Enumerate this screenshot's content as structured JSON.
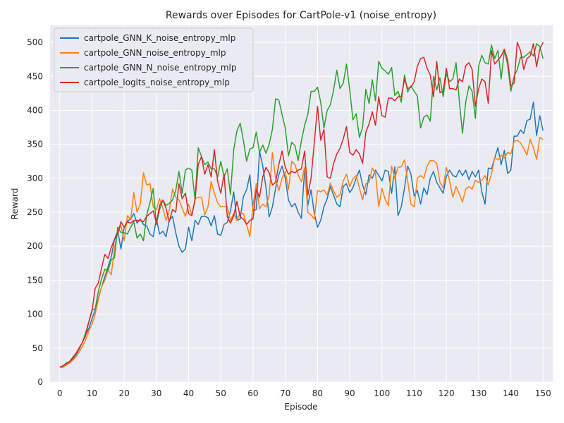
{
  "chart_data": {
    "type": "line",
    "title": "Rewards over Episodes for CartPole-v1 (noise_entropy)",
    "xlabel": "Episode",
    "ylabel": "Reward",
    "xlim": [
      -3,
      153
    ],
    "ylim": [
      0,
      525
    ],
    "xticks": [
      0,
      10,
      20,
      30,
      40,
      50,
      60,
      70,
      80,
      90,
      100,
      110,
      120,
      130,
      140,
      150
    ],
    "yticks": [
      0,
      50,
      100,
      150,
      200,
      250,
      300,
      350,
      400,
      450,
      500
    ],
    "grid": true,
    "legend_position": "top-left",
    "series": [
      {
        "name": "cartpole_GNN_K_noise_entropy_mlp",
        "color": "#1f77b4",
        "values": [
          22,
          22,
          25,
          28,
          34,
          40,
          48,
          58,
          70,
          78,
          93,
          106,
          124,
          140,
          155,
          170,
          184,
          210,
          223,
          196,
          228,
          237,
          240,
          248,
          234,
          240,
          232,
          230,
          218,
          214,
          240,
          218,
          222,
          214,
          238,
          244,
          220,
          200,
          191,
          196,
          228,
          208,
          238,
          232,
          244,
          244,
          242,
          230,
          245,
          218,
          216,
          232,
          235,
          252,
          280,
          238,
          240,
          273,
          283,
          305,
          252,
          254,
          340,
          318,
          287,
          243,
          258,
          285,
          305,
          318,
          300,
          268,
          258,
          263,
          250,
          241,
          313,
          260,
          283,
          248,
          228,
          238,
          258,
          270,
          288,
          275,
          262,
          258,
          288,
          292,
          279,
          286,
          300,
          312,
          290,
          276,
          305,
          300,
          312,
          304,
          296,
          312,
          310,
          278,
          317,
          245,
          258,
          286,
          318,
          306,
          274,
          282,
          262,
          286,
          276,
          300,
          310,
          294,
          286,
          278,
          303,
          312,
          304,
          302,
          312,
          304,
          312,
          298,
          310,
          302,
          312,
          280,
          262,
          315,
          314,
          330,
          345,
          320,
          341,
          307,
          312,
          362,
          362,
          371,
          366,
          385,
          387,
          412,
          363,
          392,
          370
        ]
      },
      {
        "name": "cartpole_GNN_noise_entropy_mlp",
        "color": "#ff7f0e",
        "values": [
          22,
          23,
          25,
          28,
          32,
          37,
          44,
          52,
          62,
          75,
          85,
          100,
          122,
          140,
          150,
          165,
          158,
          196,
          224,
          230,
          208,
          245,
          239,
          279,
          250,
          262,
          308,
          290,
          292,
          258,
          254,
          270,
          256,
          238,
          252,
          284,
          272,
          268,
          256,
          244,
          262,
          246,
          270,
          272,
          272,
          246,
          258,
          295,
          278,
          264,
          258,
          258,
          258,
          238,
          248,
          238,
          250,
          248,
          232,
          214,
          260,
          292,
          255,
          262,
          258,
          275,
          338,
          300,
          282,
          300,
          310,
          283,
          325,
          320,
          305,
          295,
          316,
          250,
          246,
          240,
          282,
          280,
          283,
          275,
          293,
          281,
          272,
          276,
          296,
          306,
          288,
          299,
          304,
          286,
          268,
          292,
          294,
          315,
          307,
          258,
          285,
          269,
          260,
          318,
          300,
          316,
          317,
          327,
          296,
          262,
          258,
          300,
          304,
          300,
          318,
          326,
          326,
          322,
          294,
          286,
          316,
          296,
          272,
          288,
          277,
          265,
          284,
          288,
          284,
          297,
          294,
          297,
          304,
          290,
          307,
          330,
          327,
          334,
          330,
          338,
          336,
          354,
          356,
          352,
          344,
          334,
          357,
          345,
          328,
          360,
          357
        ]
      },
      {
        "name": "cartpole_GNN_N_noise_entropy_mlp",
        "color": "#2ca02c",
        "values": [
          22,
          24,
          28,
          30,
          36,
          42,
          49,
          58,
          72,
          88,
          106,
          108,
          134,
          152,
          166,
          164,
          180,
          183,
          228,
          220,
          220,
          218,
          228,
          236,
          212,
          218,
          208,
          246,
          264,
          285,
          232,
          254,
          268,
          260,
          263,
          268,
          282,
          310,
          278,
          312,
          315,
          312,
          268,
          345,
          332,
          320,
          324,
          314,
          314,
          302,
          325,
          302,
          314,
          276,
          342,
          370,
          381,
          356,
          325,
          343,
          345,
          368,
          338,
          349,
          337,
          350,
          372,
          417,
          415,
          394,
          374,
          333,
          353,
          348,
          326,
          355,
          378,
          394,
          428,
          428,
          434,
          412,
          374,
          400,
          408,
          430,
          459,
          432,
          440,
          468,
          430,
          386,
          395,
          360,
          375,
          431,
          410,
          445,
          414,
          472,
          462,
          458,
          453,
          463,
          422,
          428,
          412,
          452,
          427,
          436,
          428,
          421,
          374,
          390,
          393,
          384,
          450,
          430,
          448,
          420,
          454,
          442,
          446,
          470,
          414,
          366,
          412,
          436,
          428,
          388,
          465,
          481,
          470,
          468,
          496,
          476,
          488,
          446,
          488,
          468,
          428,
          450,
          460,
          478,
          478,
          482,
          486,
          480,
          498,
          494,
          476
        ]
      },
      {
        "name": "cartpole_logits_noise_entropy_mlp",
        "color": "#d62728",
        "values": [
          22,
          24,
          27,
          30,
          36,
          42,
          50,
          58,
          68,
          88,
          104,
          138,
          146,
          168,
          188,
          182,
          198,
          210,
          218,
          236,
          228,
          236,
          234,
          238,
          238,
          238,
          236,
          244,
          248,
          252,
          234,
          260,
          268,
          256,
          236,
          254,
          250,
          292,
          270,
          278,
          248,
          245,
          268,
          320,
          332,
          306,
          320,
          302,
          342,
          295,
          278,
          306,
          243,
          234,
          245,
          266,
          243,
          240,
          232,
          238,
          240,
          284,
          272,
          302,
          316,
          308,
          290,
          294,
          320,
          340,
          316,
          306,
          310,
          308,
          312,
          314,
          340,
          275,
          300,
          352,
          406,
          356,
          372,
          302,
          300,
          322,
          336,
          344,
          358,
          376,
          338,
          334,
          342,
          336,
          322,
          368,
          380,
          398,
          378,
          420,
          392,
          390,
          418,
          418,
          414,
          420,
          420,
          446,
          432,
          434,
          442,
          465,
          476,
          478,
          462,
          452,
          420,
          472,
          426,
          428,
          462,
          432,
          432,
          430,
          446,
          442,
          466,
          470,
          460,
          406,
          432,
          446,
          442,
          410,
          488,
          468,
          474,
          480,
          490,
          474,
          436,
          440,
          500,
          488,
          460,
          476,
          480,
          498,
          464,
          490,
          500
        ]
      }
    ]
  }
}
